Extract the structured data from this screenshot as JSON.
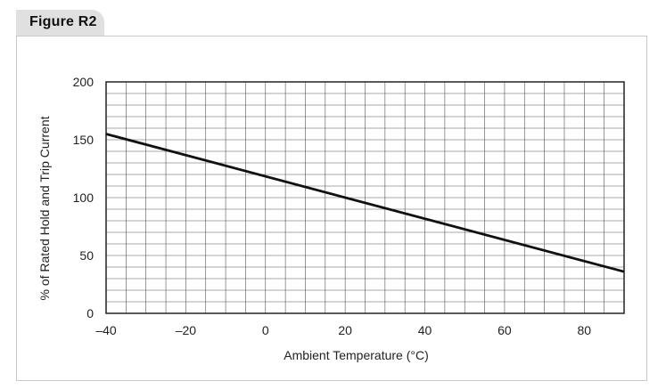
{
  "figure": {
    "label": "Figure R2"
  },
  "chart_data": {
    "type": "line",
    "xlabel": "Ambient Temperature (°C)",
    "ylabel": "% of Rated Hold and Trip Current",
    "xlim": [
      -40,
      90
    ],
    "ylim": [
      0,
      200
    ],
    "xticks": [
      -40,
      -20,
      0,
      20,
      40,
      60,
      80
    ],
    "xtick_labels": [
      "–40",
      "–20",
      "0",
      "20",
      "40",
      "60",
      "80"
    ],
    "yticks": [
      0,
      50,
      100,
      150,
      200
    ],
    "ytick_labels": [
      "0",
      "50",
      "100",
      "150",
      "200"
    ],
    "grid": true,
    "series": [
      {
        "x": [
          -40,
          90
        ],
        "y": [
          155,
          36
        ],
        "color": "#111111"
      }
    ]
  }
}
